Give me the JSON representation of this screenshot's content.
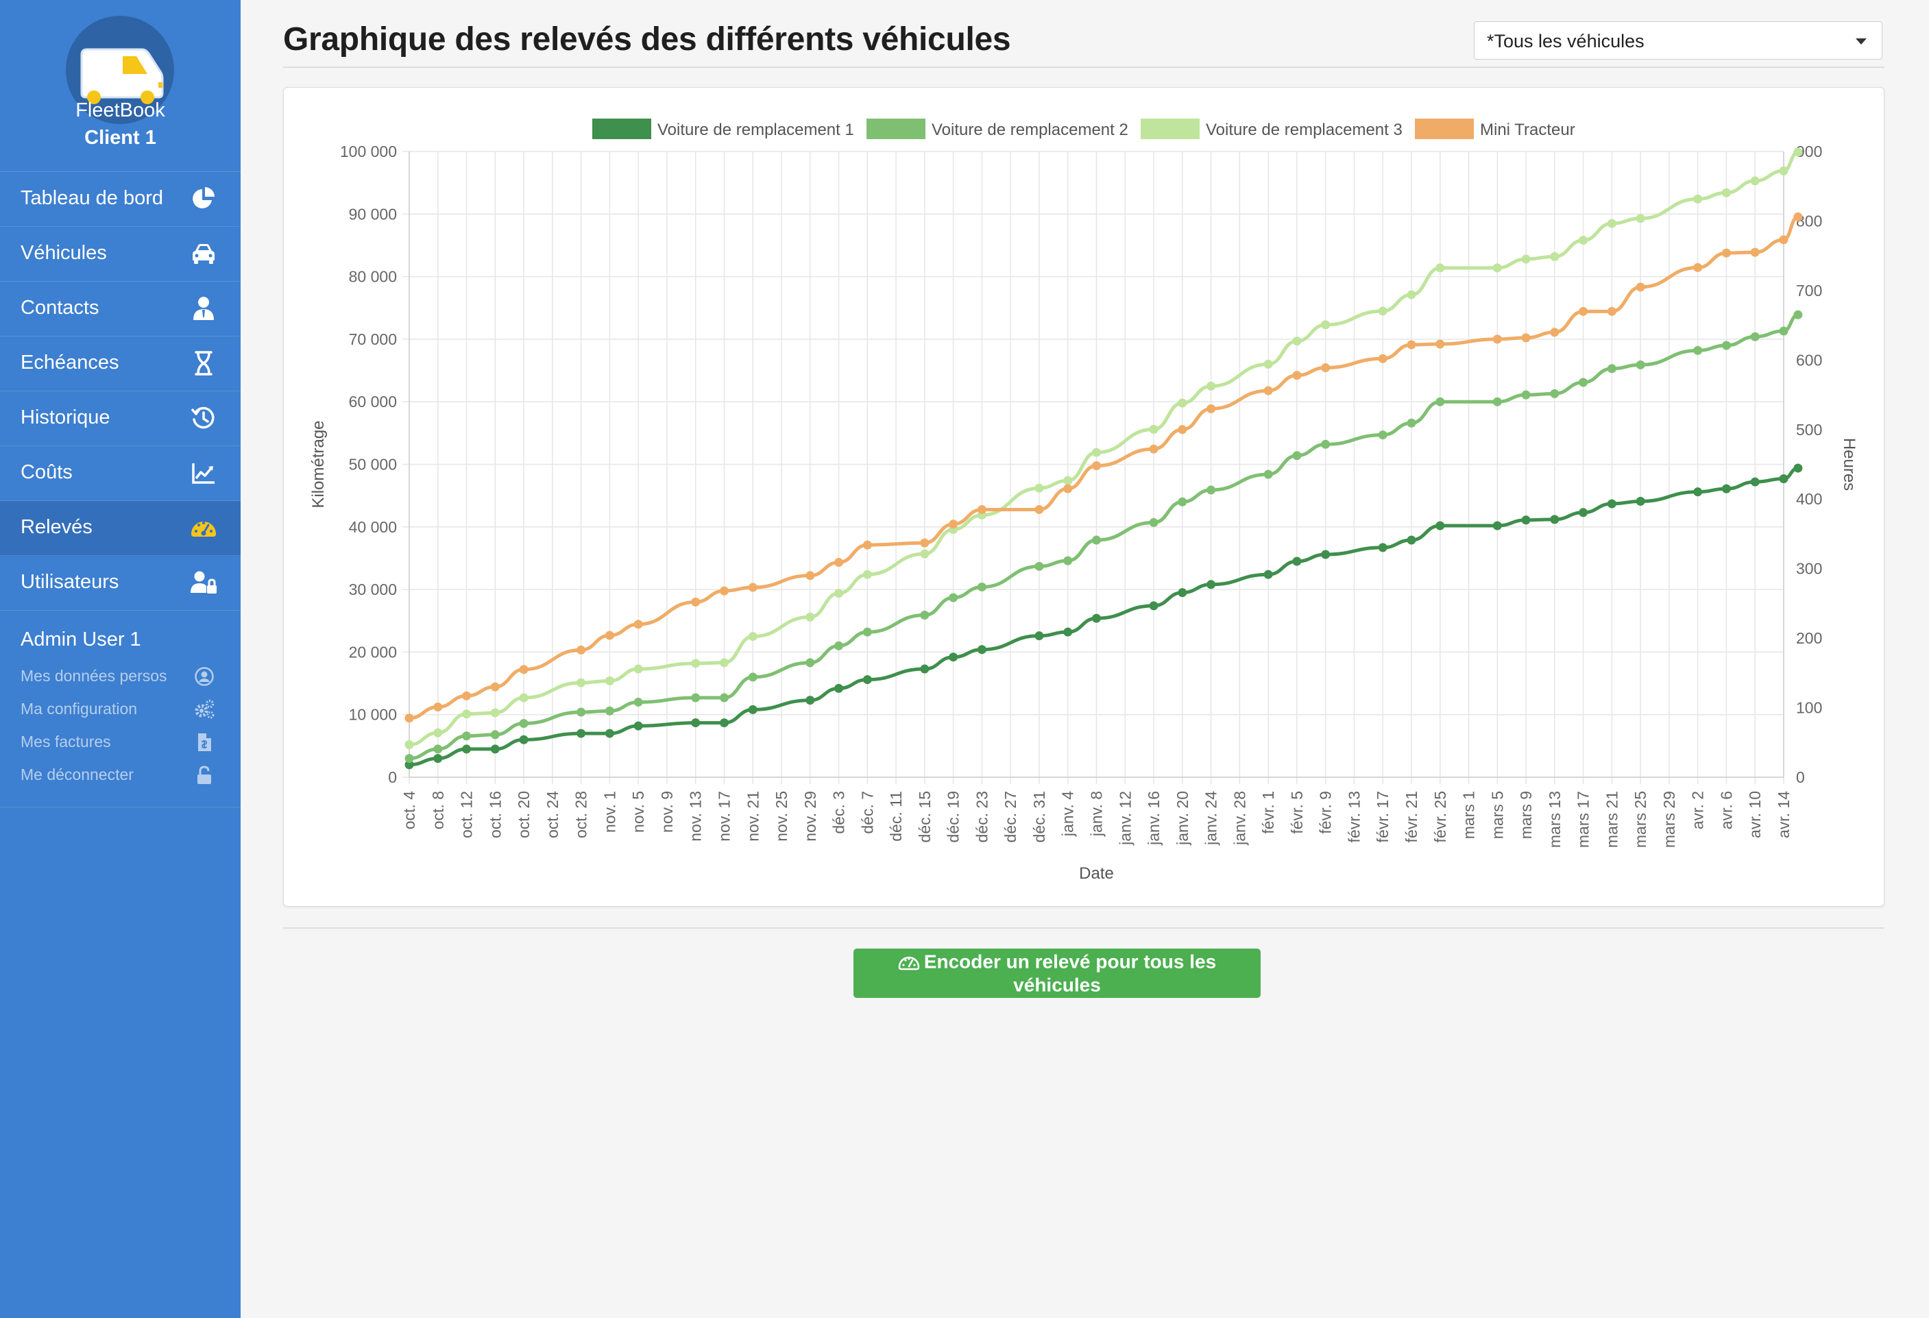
{
  "sidebar": {
    "brand_name": "FleetBook",
    "client_name": "Client 1",
    "items": [
      {
        "label": "Tableau de bord",
        "icon": "pie-chart-icon"
      },
      {
        "label": "Véhicules",
        "icon": "car-icon"
      },
      {
        "label": "Contacts",
        "icon": "contact-person-icon"
      },
      {
        "label": "Echéances",
        "icon": "hourglass-icon"
      },
      {
        "label": "Historique",
        "icon": "history-icon"
      },
      {
        "label": "Coûts",
        "icon": "chart-line-icon"
      },
      {
        "label": "Relevés",
        "icon": "speedometer-icon",
        "active": true
      },
      {
        "label": "Utilisateurs",
        "icon": "user-lock-icon"
      }
    ],
    "user": {
      "name": "Admin User 1",
      "links": [
        {
          "label": "Mes données persos",
          "icon": "user-circle-icon"
        },
        {
          "label": "Ma configuration",
          "icon": "gears-icon"
        },
        {
          "label": "Mes factures",
          "icon": "invoice-icon"
        },
        {
          "label": "Me déconnecter",
          "icon": "unlock-icon"
        }
      ]
    },
    "colors": {
      "background": "#3d7fd0",
      "active": "#346fbc",
      "gauge_icon": "#f5c518"
    }
  },
  "main": {
    "title": "Graphique des relevés des différents véhicules",
    "vehicle_select": {
      "value": "*Tous les véhicules"
    },
    "encode_button_label": "Encoder un relevé pour tous les véhicules",
    "encode_button_color": "#4caf50"
  },
  "chart_data": {
    "type": "line",
    "xlabel": "Date",
    "ylabel": "Kilométrage",
    "y2label": "Heures",
    "ylim": [
      0,
      100000
    ],
    "y2lim": [
      0,
      900
    ],
    "yticks": [
      0,
      10000,
      20000,
      30000,
      40000,
      50000,
      60000,
      70000,
      80000,
      90000,
      100000
    ],
    "ytick_labels": [
      "0",
      "10 000",
      "20 000",
      "30 000",
      "40 000",
      "50 000",
      "60 000",
      "70 000",
      "80 000",
      "90 000",
      "100 000"
    ],
    "y2ticks": [
      0,
      100,
      200,
      300,
      400,
      500,
      600,
      700,
      800,
      900
    ],
    "y2tick_labels": [
      "0",
      "100",
      "200",
      "300",
      "400",
      "500",
      "600",
      "700",
      "800",
      "900"
    ],
    "x_categories": [
      "oct. 4",
      "oct. 8",
      "oct. 12",
      "oct. 16",
      "oct. 20",
      "oct. 24",
      "oct. 28",
      "nov. 1",
      "nov. 5",
      "nov. 9",
      "nov. 13",
      "nov. 17",
      "nov. 21",
      "nov. 25",
      "nov. 29",
      "déc. 3",
      "déc. 7",
      "déc. 11",
      "déc. 15",
      "déc. 19",
      "déc. 23",
      "déc. 27",
      "déc. 31",
      "janv. 4",
      "janv. 8",
      "janv. 12",
      "janv. 16",
      "janv. 20",
      "janv. 24",
      "janv. 28",
      "févr. 1",
      "févr. 5",
      "févr. 9",
      "févr. 13",
      "févr. 17",
      "févr. 21",
      "févr. 25",
      "mars 1",
      "mars 5",
      "mars 9",
      "mars 13",
      "mars 17",
      "mars 21",
      "mars 25",
      "mars 29",
      "avr. 2",
      "avr. 6",
      "avr. 10",
      "avr. 14"
    ],
    "grid": true,
    "legend_position": "top",
    "series": [
      {
        "name": "Voiture de remplacement 1",
        "axis": "left",
        "color": "#3f8f4d",
        "points": [
          [
            "oct. 4",
            2000
          ],
          [
            "oct. 8",
            3000
          ],
          [
            "oct. 12",
            4500
          ],
          [
            "oct. 16",
            4500
          ],
          [
            "oct. 20",
            6000
          ],
          [
            "oct. 28",
            7000
          ],
          [
            "nov. 1",
            7000
          ],
          [
            "nov. 5",
            8200
          ],
          [
            "nov. 13",
            8700
          ],
          [
            "nov. 17",
            8700
          ],
          [
            "nov. 21",
            10800
          ],
          [
            "nov. 29",
            12300
          ],
          [
            "déc. 3",
            14200
          ],
          [
            "déc. 7",
            15600
          ],
          [
            "déc. 15",
            17300
          ],
          [
            "déc. 19",
            19200
          ],
          [
            "déc. 23",
            20400
          ],
          [
            "déc. 31",
            22600
          ],
          [
            "janv. 4",
            23200
          ],
          [
            "janv. 8",
            25400
          ],
          [
            "janv. 16",
            27400
          ],
          [
            "janv. 20",
            29500
          ],
          [
            "janv. 24",
            30800
          ],
          [
            "févr. 1",
            32400
          ],
          [
            "févr. 5",
            34500
          ],
          [
            "févr. 9",
            35600
          ],
          [
            "févr. 17",
            36700
          ],
          [
            "févr. 21",
            37900
          ],
          [
            "févr. 25",
            40200
          ],
          [
            "mars 5",
            40200
          ],
          [
            "mars 9",
            41100
          ],
          [
            "mars 13",
            41200
          ],
          [
            "mars 17",
            42300
          ],
          [
            "mars 21",
            43700
          ],
          [
            "mars 25",
            44100
          ],
          [
            "avr. 2",
            45600
          ],
          [
            "avr. 6",
            46100
          ],
          [
            "avr. 10",
            47200
          ],
          [
            "avr. 14",
            47700
          ],
          [
            "avr. 16",
            49400
          ]
        ]
      },
      {
        "name": "Voiture de remplacement 2",
        "axis": "left",
        "color": "#7fbf72",
        "points": [
          [
            "oct. 4",
            3000
          ],
          [
            "oct. 8",
            4500
          ],
          [
            "oct. 12",
            6600
          ],
          [
            "oct. 16",
            6800
          ],
          [
            "oct. 20",
            8600
          ],
          [
            "oct. 28",
            10400
          ],
          [
            "nov. 1",
            10600
          ],
          [
            "nov. 5",
            12000
          ],
          [
            "nov. 13",
            12700
          ],
          [
            "nov. 17",
            12700
          ],
          [
            "nov. 21",
            16000
          ],
          [
            "nov. 29",
            18300
          ],
          [
            "déc. 3",
            21000
          ],
          [
            "déc. 7",
            23200
          ],
          [
            "déc. 15",
            25900
          ],
          [
            "déc. 19",
            28700
          ],
          [
            "déc. 23",
            30400
          ],
          [
            "déc. 31",
            33700
          ],
          [
            "janv. 4",
            34600
          ],
          [
            "janv. 8",
            37900
          ],
          [
            "janv. 16",
            40700
          ],
          [
            "janv. 20",
            44000
          ],
          [
            "janv. 24",
            45900
          ],
          [
            "févr. 1",
            48400
          ],
          [
            "févr. 5",
            51400
          ],
          [
            "févr. 9",
            53200
          ],
          [
            "févr. 17",
            54700
          ],
          [
            "févr. 21",
            56600
          ],
          [
            "févr. 25",
            60000
          ],
          [
            "mars 5",
            60000
          ],
          [
            "mars 9",
            61100
          ],
          [
            "mars 13",
            61300
          ],
          [
            "mars 17",
            63100
          ],
          [
            "mars 21",
            65300
          ],
          [
            "mars 25",
            65900
          ],
          [
            "avr. 2",
            68200
          ],
          [
            "avr. 6",
            69000
          ],
          [
            "avr. 10",
            70400
          ],
          [
            "avr. 14",
            71300
          ],
          [
            "avr. 16",
            73900
          ]
        ]
      },
      {
        "name": "Voiture de remplacement 3",
        "axis": "left",
        "color": "#bfe49c",
        "points": [
          [
            "oct. 4",
            5200
          ],
          [
            "oct. 8",
            7100
          ],
          [
            "oct. 12",
            10100
          ],
          [
            "oct. 16",
            10300
          ],
          [
            "oct. 20",
            12700
          ],
          [
            "oct. 28",
            15100
          ],
          [
            "nov. 1",
            15400
          ],
          [
            "nov. 5",
            17300
          ],
          [
            "nov. 13",
            18200
          ],
          [
            "nov. 17",
            18300
          ],
          [
            "nov. 21",
            22500
          ],
          [
            "nov. 29",
            25600
          ],
          [
            "déc. 3",
            29400
          ],
          [
            "déc. 7",
            32400
          ],
          [
            "déc. 15",
            35700
          ],
          [
            "déc. 19",
            39600
          ],
          [
            "déc. 23",
            41900
          ],
          [
            "déc. 31",
            46200
          ],
          [
            "janv. 4",
            47400
          ],
          [
            "janv. 8",
            51900
          ],
          [
            "janv. 16",
            55600
          ],
          [
            "janv. 20",
            59800
          ],
          [
            "janv. 24",
            62500
          ],
          [
            "févr. 1",
            66000
          ],
          [
            "févr. 5",
            69700
          ],
          [
            "févr. 9",
            72300
          ],
          [
            "févr. 17",
            74500
          ],
          [
            "févr. 21",
            77100
          ],
          [
            "févr. 25",
            81400
          ],
          [
            "mars 5",
            81400
          ],
          [
            "mars 9",
            82800
          ],
          [
            "mars 13",
            83200
          ],
          [
            "mars 17",
            85800
          ],
          [
            "mars 21",
            88500
          ],
          [
            "mars 25",
            89300
          ],
          [
            "avr. 2",
            92400
          ],
          [
            "avr. 6",
            93400
          ],
          [
            "avr. 10",
            95300
          ],
          [
            "avr. 14",
            96900
          ],
          [
            "avr. 16",
            99900
          ]
        ]
      },
      {
        "name": "Mini Tracteur",
        "axis": "right",
        "color": "#f0ac66",
        "points": [
          [
            "oct. 4",
            85
          ],
          [
            "oct. 8",
            101
          ],
          [
            "oct. 12",
            117
          ],
          [
            "oct. 16",
            130
          ],
          [
            "oct. 20",
            155
          ],
          [
            "oct. 28",
            183
          ],
          [
            "nov. 1",
            204
          ],
          [
            "nov. 5",
            220
          ],
          [
            "nov. 13",
            252
          ],
          [
            "nov. 17",
            268
          ],
          [
            "nov. 21",
            273
          ],
          [
            "nov. 29",
            290
          ],
          [
            "déc. 3",
            309
          ],
          [
            "déc. 7",
            334
          ],
          [
            "déc. 15",
            337
          ],
          [
            "déc. 19",
            364
          ],
          [
            "déc. 23",
            385
          ],
          [
            "déc. 31",
            385
          ],
          [
            "janv. 4",
            415
          ],
          [
            "janv. 8",
            448
          ],
          [
            "janv. 16",
            472
          ],
          [
            "janv. 20",
            500
          ],
          [
            "janv. 24",
            530
          ],
          [
            "févr. 1",
            556
          ],
          [
            "févr. 5",
            578
          ],
          [
            "févr. 9",
            589
          ],
          [
            "févr. 17",
            602
          ],
          [
            "févr. 21",
            622
          ],
          [
            "févr. 25",
            623
          ],
          [
            "mars 5",
            630
          ],
          [
            "mars 9",
            632
          ],
          [
            "mars 13",
            640
          ],
          [
            "mars 17",
            670
          ],
          [
            "mars 21",
            670
          ],
          [
            "mars 25",
            705
          ],
          [
            "avr. 2",
            733
          ],
          [
            "avr. 6",
            754
          ],
          [
            "avr. 10",
            755
          ],
          [
            "avr. 14",
            773
          ],
          [
            "avr. 16",
            806
          ]
        ]
      }
    ]
  }
}
